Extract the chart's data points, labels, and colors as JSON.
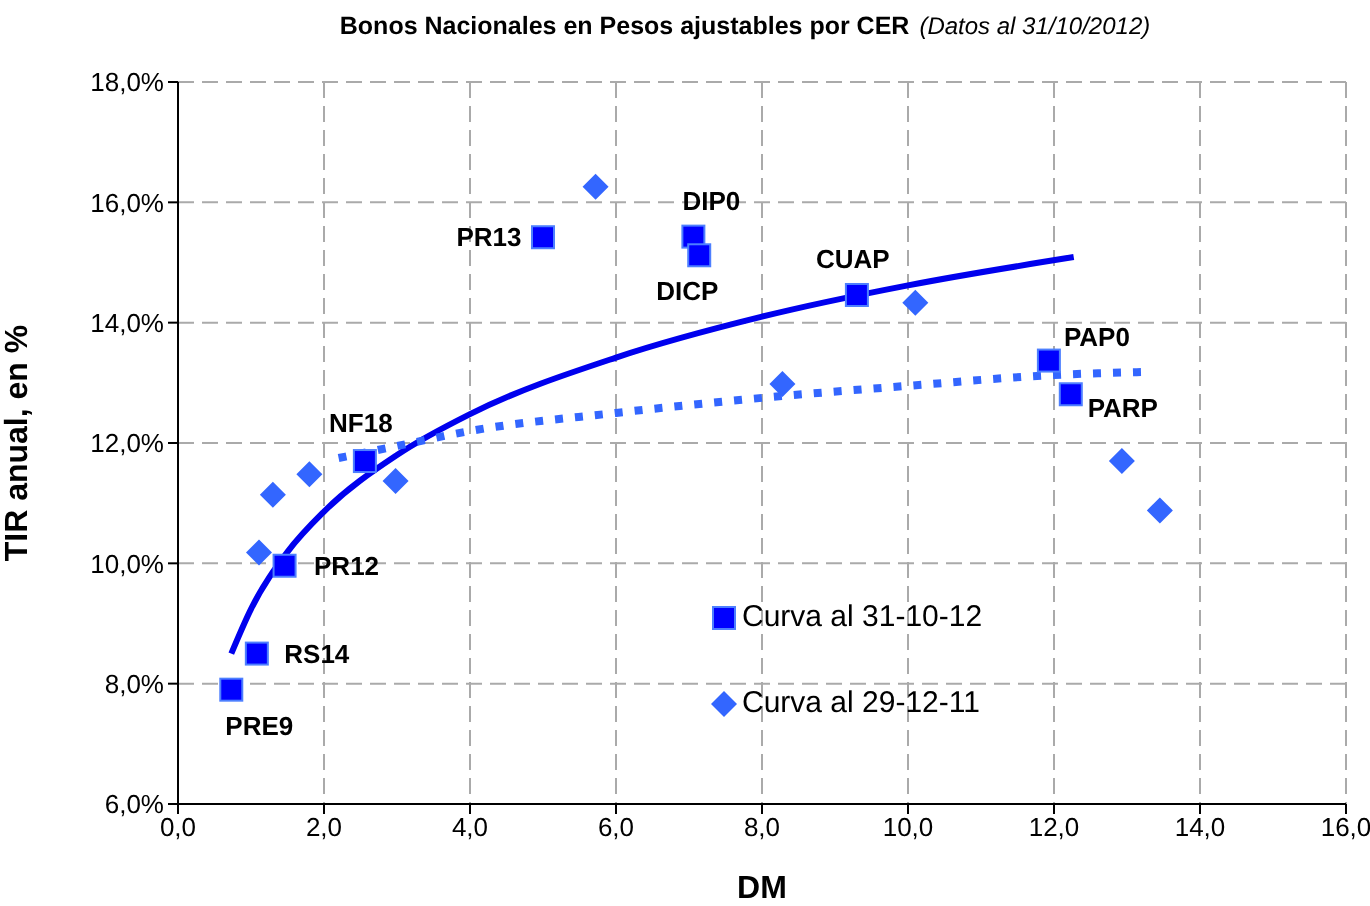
{
  "chart_data": {
    "type": "scatter",
    "title": "Bonos Nacionales en Pesos ajustables por CER",
    "subtitle": "(Datos al 31/10/2012)",
    "xlabel": "DM",
    "ylabel": "TIR anual, en %",
    "xlim": [
      0,
      16
    ],
    "xticks": [
      {
        "value": 0,
        "label": "0,0"
      },
      {
        "value": 2,
        "label": "2,0"
      },
      {
        "value": 4,
        "label": "4,0"
      },
      {
        "value": 6,
        "label": "6,0"
      },
      {
        "value": 8,
        "label": "8,0"
      },
      {
        "value": 10,
        "label": "10,0"
      },
      {
        "value": 12,
        "label": "12,0"
      },
      {
        "value": 14,
        "label": "14,0"
      },
      {
        "value": 16,
        "label": "16,0"
      }
    ],
    "ylim": [
      6,
      18
    ],
    "yticks": [
      {
        "value": 6,
        "label": "6,0%"
      },
      {
        "value": 8,
        "label": "8,0%"
      },
      {
        "value": 10,
        "label": "10,0%"
      },
      {
        "value": 12,
        "label": "12,0%"
      },
      {
        "value": 14,
        "label": "14,0%"
      },
      {
        "value": 16,
        "label": "16,0%"
      },
      {
        "value": 18,
        "label": "18,0%"
      }
    ],
    "grid": true,
    "legend": "bottom",
    "series": [
      {
        "name": "Curva al 31-10-12",
        "marker": "square",
        "color": "#0000ff",
        "x": [
          0.73,
          1.08,
          1.46,
          2.56,
          5.0,
          7.06,
          7.14,
          9.3,
          11.93,
          12.23
        ],
        "values": [
          7.9,
          8.5,
          9.96,
          11.7,
          15.42,
          15.43,
          15.12,
          14.46,
          13.37,
          12.81
        ]
      },
      {
        "name": "Curva al 29-12-11",
        "marker": "diamond",
        "color": "#3366ff",
        "x": [
          1.11,
          1.3,
          1.8,
          2.98,
          5.72,
          8.28,
          10.1,
          12.93,
          13.45
        ],
        "values": [
          10.18,
          11.14,
          11.48,
          11.37,
          16.26,
          12.98,
          14.33,
          11.7,
          10.88
        ]
      },
      {
        "type": "line",
        "marker": "none",
        "line_style": "solid",
        "color": "#0000ee",
        "x": [
          0.73,
          1,
          1.5,
          2,
          3,
          4,
          6,
          8,
          10,
          12.27
        ],
        "values": [
          8.5,
          9.24,
          10.19,
          10.86,
          11.8,
          12.48,
          13.42,
          14.1,
          14.62,
          15.09
        ]
      },
      {
        "type": "line",
        "marker": "none",
        "line_style": "dotted",
        "color": "#3366ff",
        "x": [
          2.2,
          3,
          4,
          6,
          8,
          10,
          12,
          13.2
        ],
        "values": [
          11.75,
          11.95,
          12.2,
          12.5,
          12.75,
          12.95,
          13.13,
          13.18
        ]
      }
    ],
    "annotations": [
      {
        "text": "PRE9",
        "x": 0.73,
        "y": 7.9
      },
      {
        "text": "RS14",
        "x": 1.08,
        "y": 8.5
      },
      {
        "text": "PR12",
        "x": 1.46,
        "y": 9.96
      },
      {
        "text": "NF18",
        "x": 2.56,
        "y": 11.7
      },
      {
        "text": "PR13",
        "x": 5.0,
        "y": 15.42
      },
      {
        "text": "DIP0",
        "x": 7.06,
        "y": 15.43
      },
      {
        "text": "DICP",
        "x": 7.14,
        "y": 15.12
      },
      {
        "text": "CUAP",
        "x": 9.3,
        "y": 14.46
      },
      {
        "text": "PAP0",
        "x": 11.93,
        "y": 13.37
      },
      {
        "text": "PARP",
        "x": 12.23,
        "y": 12.81
      }
    ]
  }
}
